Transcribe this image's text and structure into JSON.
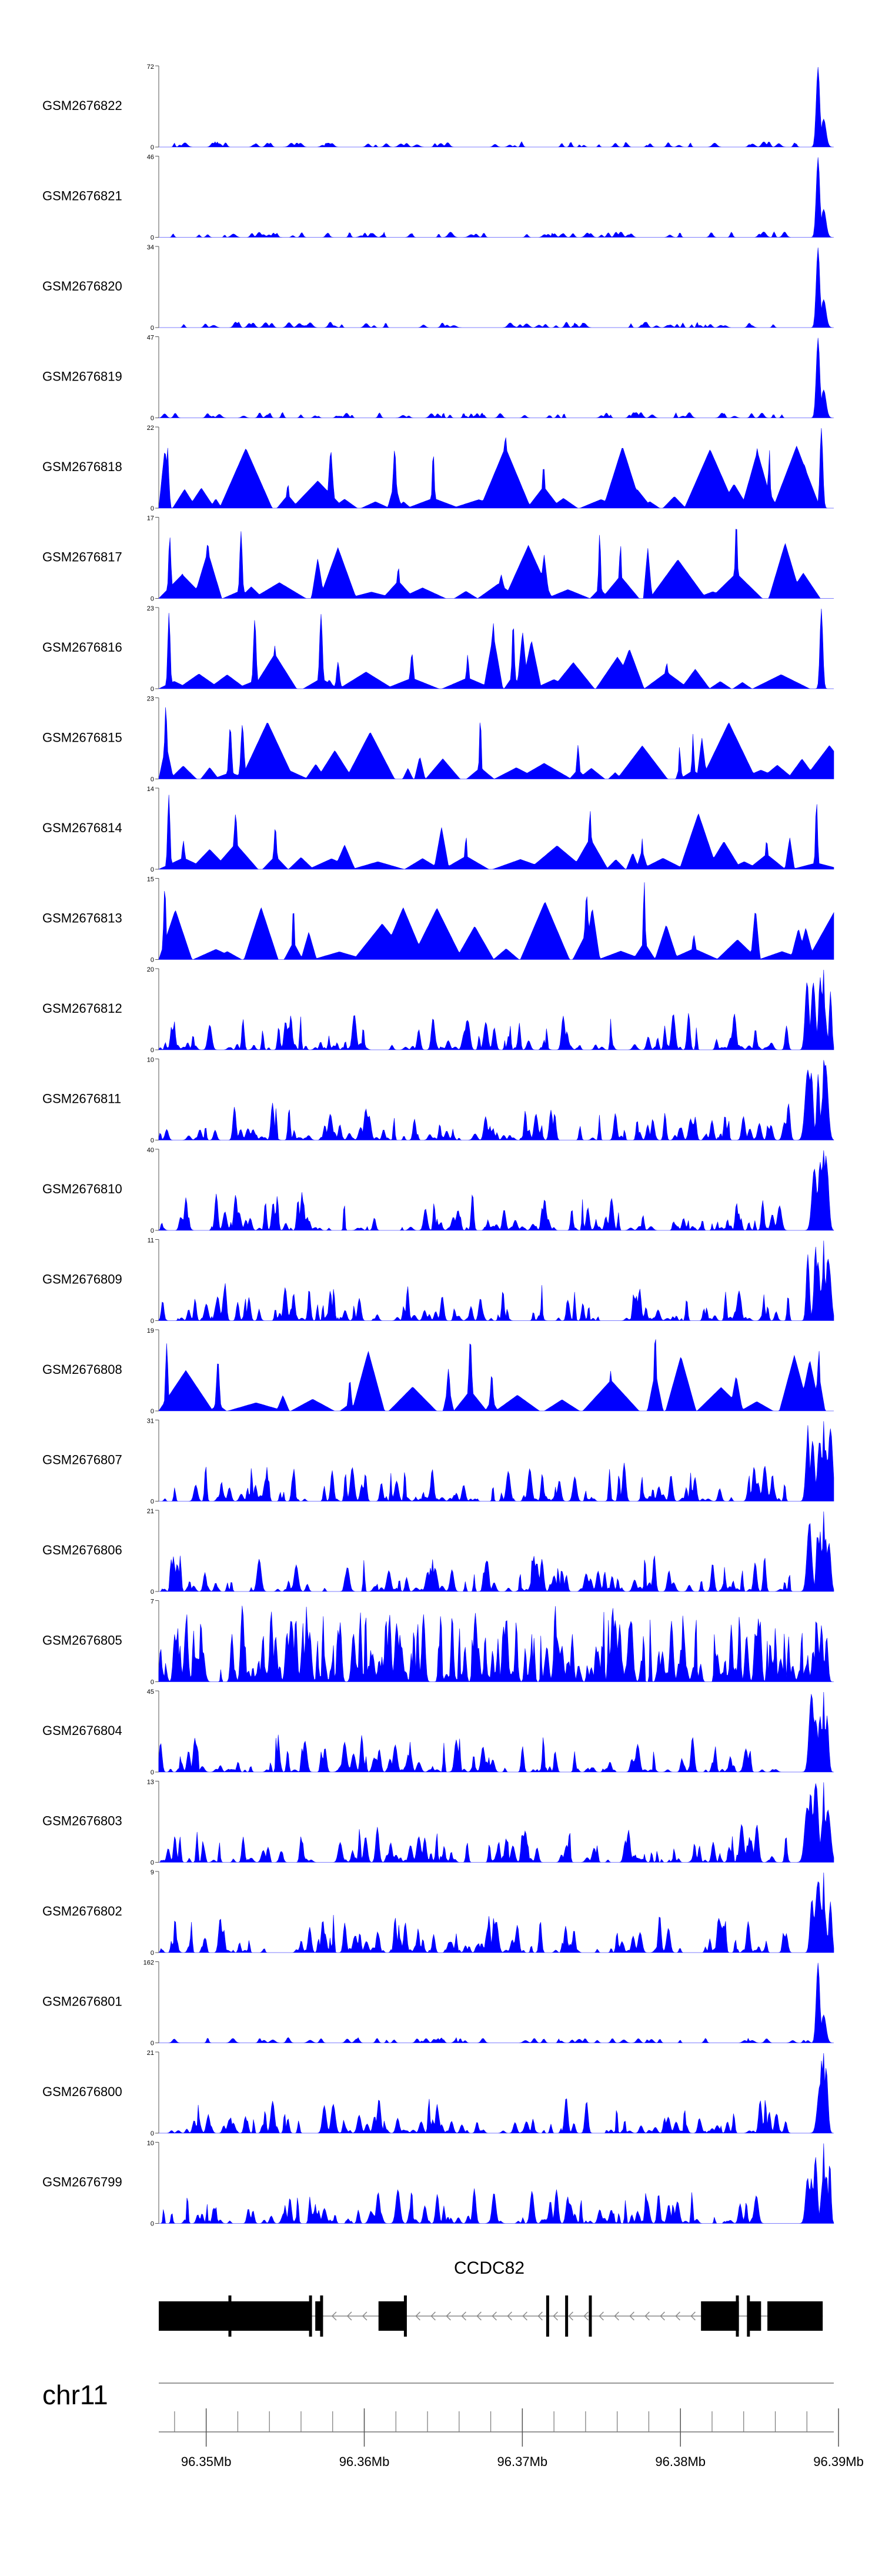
{
  "chart_data": {
    "type": "area",
    "x_range": [
      96.347,
      96.3897
    ],
    "x_ticks": [
      {
        "value": 96.35,
        "label": "96.35Mb"
      },
      {
        "value": 96.36,
        "label": "96.36Mb"
      },
      {
        "value": 96.37,
        "label": "96.37Mb"
      },
      {
        "value": 96.38,
        "label": "96.38Mb"
      },
      {
        "value": 96.39,
        "label": "96.39Mb"
      }
    ],
    "chromosome": "chr11",
    "gene": {
      "name": "CCDC82",
      "strand": "-",
      "start": 96.347,
      "end": 96.389,
      "blocks": [
        [
          96.347,
          96.3566
        ],
        [
          96.3569,
          96.3573
        ],
        [
          96.3609,
          96.3626
        ],
        [
          96.3813,
          96.3837
        ],
        [
          96.3843,
          96.3851
        ],
        [
          96.3855,
          96.389
        ]
      ],
      "exon_marks": [
        96.3515,
        96.3566,
        96.3573,
        96.3626,
        96.3716,
        96.3728,
        96.3743,
        96.3836,
        96.3843
      ]
    },
    "series": [
      {
        "name": "GSM2676822",
        "ymax": 72,
        "ymax_label": "72",
        "pattern": "sparse",
        "seed": 822
      },
      {
        "name": "GSM2676821",
        "ymax": 46,
        "ymax_label": "46",
        "pattern": "sparse",
        "seed": 821
      },
      {
        "name": "GSM2676820",
        "ymax": 34,
        "ymax_label": "34",
        "pattern": "sparse",
        "seed": 820
      },
      {
        "name": "GSM2676819",
        "ymax": 47,
        "ymax_label": "47",
        "pattern": "sparse",
        "seed": 819
      },
      {
        "name": "GSM2676818",
        "ymax": 22,
        "ymax_label": "22",
        "pattern": "triangles",
        "seed": 818
      },
      {
        "name": "GSM2676817",
        "ymax": 17,
        "ymax_label": "17",
        "pattern": "triangles",
        "seed": 817
      },
      {
        "name": "GSM2676816",
        "ymax": 23,
        "ymax_label": "23",
        "pattern": "triangles",
        "seed": 816
      },
      {
        "name": "GSM2676815",
        "ymax": 23,
        "ymax_label": "23",
        "pattern": "triangles",
        "seed": 815
      },
      {
        "name": "GSM2676814",
        "ymax": 14,
        "ymax_label": "14",
        "pattern": "triangles",
        "seed": 814
      },
      {
        "name": "GSM2676813",
        "ymax": 15,
        "ymax_label": "15",
        "pattern": "triangles",
        "seed": 813
      },
      {
        "name": "GSM2676812",
        "ymax": 20,
        "ymax_label": "20",
        "pattern": "medium",
        "seed": 812
      },
      {
        "name": "GSM2676811",
        "ymax": 10,
        "ymax_label": "10",
        "pattern": "medium",
        "seed": 811
      },
      {
        "name": "GSM2676810",
        "ymax": 40,
        "ymax_label": "40",
        "pattern": "medium",
        "seed": 810
      },
      {
        "name": "GSM2676809",
        "ymax": 11,
        "ymax_label": "11",
        "pattern": "medium",
        "seed": 809
      },
      {
        "name": "GSM2676808",
        "ymax": 19,
        "ymax_label": "19",
        "pattern": "triangles",
        "seed": 808
      },
      {
        "name": "GSM2676807",
        "ymax": 31,
        "ymax_label": "31",
        "pattern": "medium",
        "seed": 807
      },
      {
        "name": "GSM2676806",
        "ymax": 21,
        "ymax_label": "21",
        "pattern": "medium",
        "seed": 806
      },
      {
        "name": "GSM2676805",
        "ymax": 7,
        "ymax_label": "7",
        "pattern": "dense",
        "seed": 805
      },
      {
        "name": "GSM2676804",
        "ymax": 45,
        "ymax_label": "45",
        "pattern": "medium",
        "seed": 804
      },
      {
        "name": "GSM2676803",
        "ymax": 13,
        "ymax_label": "13",
        "pattern": "medium",
        "seed": 803
      },
      {
        "name": "GSM2676802",
        "ymax": 9,
        "ymax_label": "9",
        "pattern": "medium",
        "seed": 802
      },
      {
        "name": "GSM2676801",
        "ymax": 162,
        "ymax_label": "162",
        "pattern": "sparse",
        "seed": 801
      },
      {
        "name": "GSM2676800",
        "ymax": 21,
        "ymax_label": "21",
        "pattern": "medium",
        "seed": 800
      },
      {
        "name": "GSM2676799",
        "ymax": 10,
        "ymax_label": "10",
        "pattern": "medium",
        "seed": 799
      }
    ],
    "colors": {
      "fill": "#0000ff",
      "axis": "#555555",
      "text": "#000000"
    }
  }
}
